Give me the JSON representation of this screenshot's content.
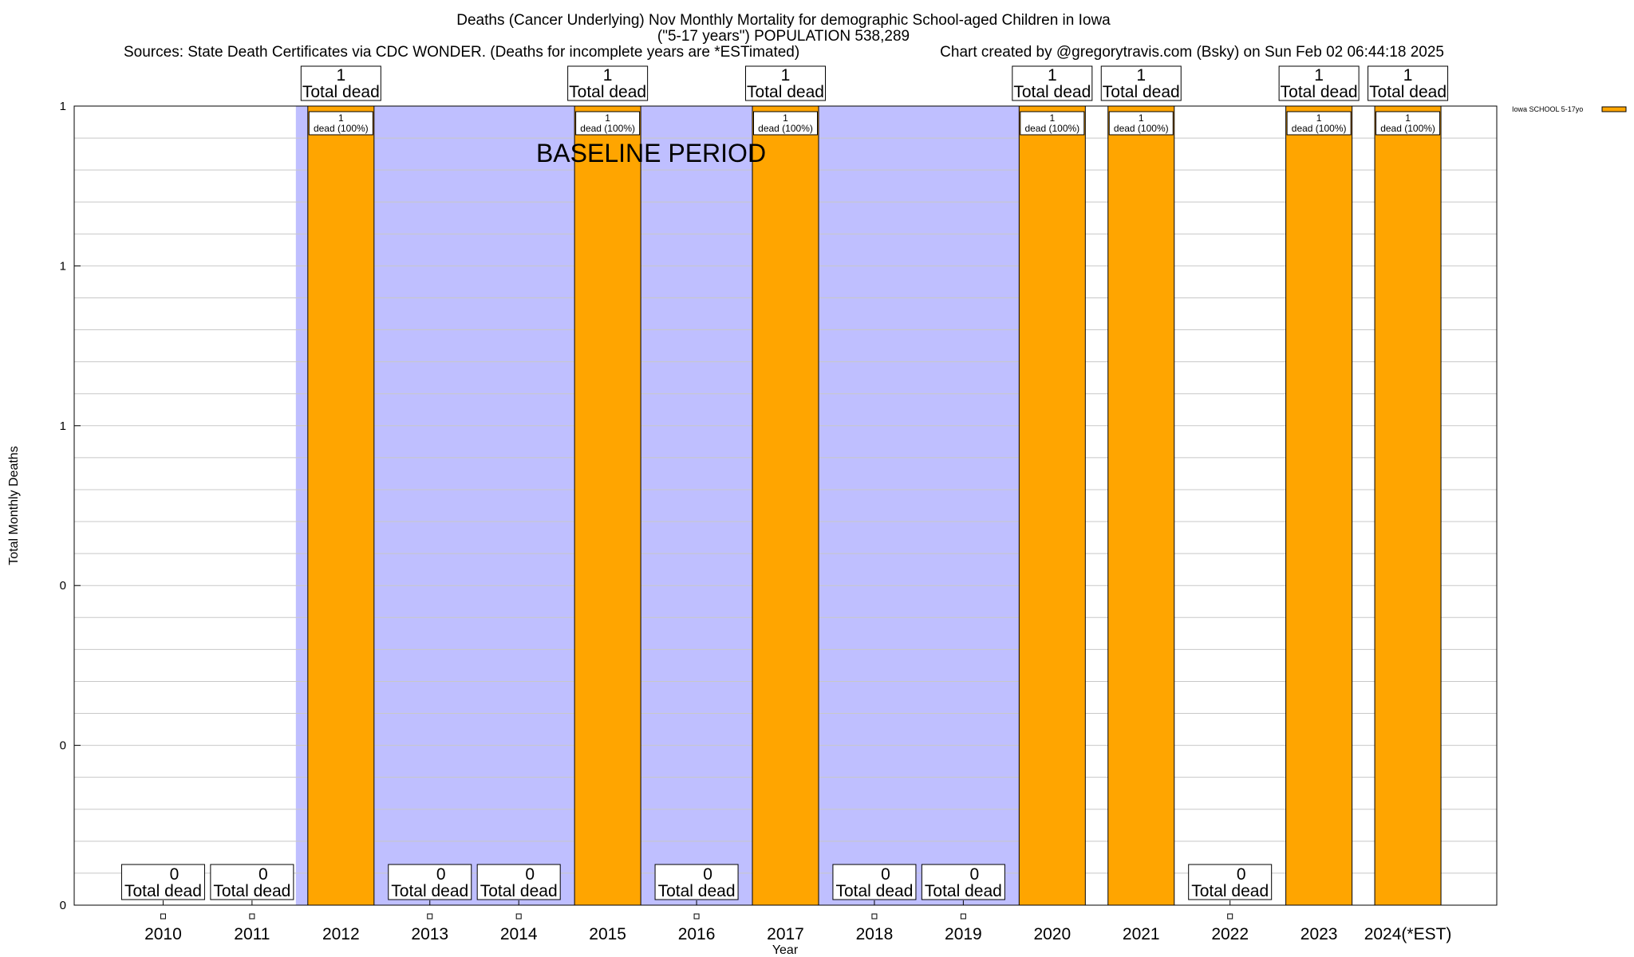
{
  "chart_data": {
    "type": "bar",
    "title_lines": [
      "Deaths (Cancer Underlying) Nov Monthly Mortality for demographic School-aged Children in Iowa",
      "(\"5-17 years\") POPULATION 538,289"
    ],
    "sources": "Sources: State Death Certificates via CDC WONDER. (Deaths for incomplete years are *ESTimated)",
    "credit": "Chart created by @gregorytravis.com (Bsky) on Sun Feb 02 06:44:18 2025",
    "xlabel": "Year",
    "ylabel": "Total Monthly Deaths",
    "categories": [
      "2010",
      "2011",
      "2012",
      "2013",
      "2014",
      "2015",
      "2016",
      "2017",
      "2018",
      "2019",
      "2020",
      "2021",
      "2022",
      "2023",
      "2024(*EST)"
    ],
    "series": [
      {
        "name": "Iowa SCHOOL 5-17yo",
        "color": "#ffa500",
        "values": [
          0,
          0,
          1,
          0,
          0,
          1,
          0,
          1,
          0,
          0,
          1,
          1,
          0,
          1,
          1
        ]
      }
    ],
    "ylim": [
      0,
      1
    ],
    "yticks": [
      {
        "value": 0,
        "label": "0"
      },
      {
        "value": 0.2,
        "label": "0"
      },
      {
        "value": 0.4,
        "label": "0"
      },
      {
        "value": 0.6,
        "label": "1"
      },
      {
        "value": 0.8,
        "label": "1"
      },
      {
        "value": 1.0,
        "label": "1"
      }
    ],
    "grid": true,
    "baseline_period": {
      "label": "BASELINE PERIOD",
      "start": "2012",
      "end": "2019",
      "color": "#bfbfff"
    },
    "total_labels": [
      "0",
      "0",
      "1",
      "0",
      "0",
      "1",
      "0",
      "1",
      "0",
      "0",
      "1",
      "1",
      "0",
      "1",
      "1"
    ],
    "total_suffix": "Total dead",
    "dead_labels": [
      "",
      "",
      "1",
      "",
      "",
      "1",
      "",
      "1",
      "",
      "",
      "1",
      "1",
      "",
      "1",
      "1"
    ],
    "dead_suffix": "dead (100%)",
    "legend_position": "top-right"
  }
}
